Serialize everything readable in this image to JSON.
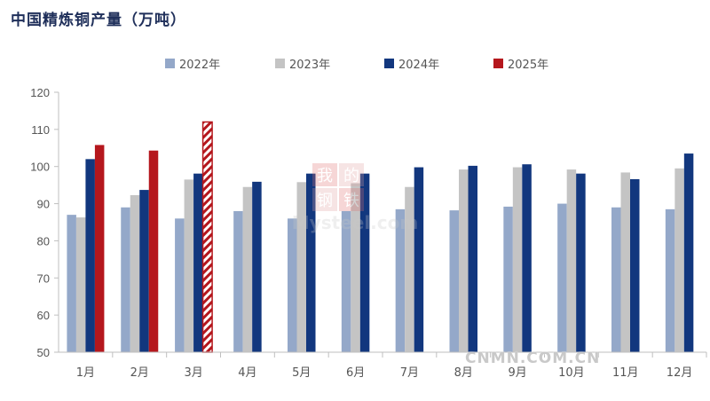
{
  "colors": {
    "s2022": "#94a8c9",
    "s2023": "#c4c4c4",
    "s2024": "#12377e",
    "s2025": "#b5171d",
    "axis": "#bfbfbf",
    "title": "#1f2f5a"
  },
  "watermark": {
    "cn_chars": [
      "我",
      "的",
      "钢",
      "铁"
    ],
    "latin": "Mysteel.com"
  },
  "site_mark": "CNMN.COM.CN",
  "chart_data": {
    "type": "bar",
    "title": "中国精炼铜产量（万吨）",
    "xlabel": "",
    "ylabel": "",
    "ylim": [
      50,
      120
    ],
    "yticks": [
      50,
      60,
      70,
      80,
      90,
      100,
      110,
      120
    ],
    "legend_position": "top",
    "grid": false,
    "categories": [
      "1月",
      "2月",
      "3月",
      "4月",
      "5月",
      "6月",
      "7月",
      "8月",
      "9月",
      "10月",
      "11月",
      "12月"
    ],
    "series": [
      {
        "name": "2022年",
        "values": [
          87,
          89,
          86,
          88,
          86,
          88,
          88.5,
          88.2,
          89.2,
          90,
          89,
          88.5
        ]
      },
      {
        "name": "2023年",
        "values": [
          86.3,
          92.3,
          96.5,
          94.5,
          95.8,
          95.5,
          94.5,
          99.2,
          99.8,
          99.2,
          98.4,
          99.5
        ]
      },
      {
        "name": "2024年",
        "values": [
          102,
          93.7,
          98.1,
          95.9,
          98.1,
          98.1,
          99.8,
          100.2,
          100.6,
          98.1,
          96.6,
          103.5
        ]
      },
      {
        "name": "2025年",
        "values": [
          105.8,
          104.3,
          112,
          null,
          null,
          null,
          null,
          null,
          null,
          null,
          null,
          null
        ],
        "hatched_categories": [
          "3月"
        ]
      }
    ]
  }
}
